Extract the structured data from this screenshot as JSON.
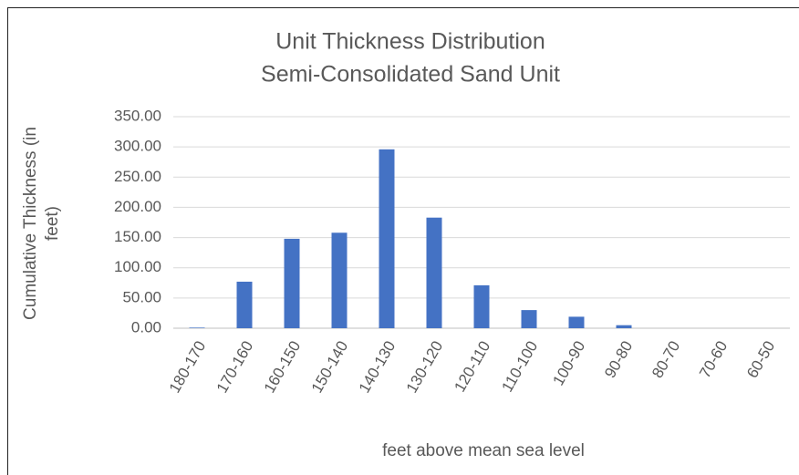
{
  "chart_data": {
    "type": "bar",
    "title": "Unit Thickness Distribution",
    "subtitle": "Semi-Consolidated Sand Unit",
    "x_label": "feet above mean sea level",
    "y_label": "Cumulative Thickness (in feet)",
    "categories": [
      "180-170",
      "170-160",
      "160-150",
      "150-140",
      "140-130",
      "130-120",
      "120-110",
      "110-100",
      "100-90",
      "90-80",
      "80-70",
      "70-60",
      "60-50"
    ],
    "values": [
      1,
      77,
      148,
      158,
      296,
      183,
      71,
      30,
      19,
      5,
      0,
      0,
      0
    ],
    "color": "#4472c4",
    "ylim": [
      0,
      350
    ],
    "yticks": [
      {
        "value": 0,
        "label": "0.00"
      },
      {
        "value": 50,
        "label": "50.00"
      },
      {
        "value": 100,
        "label": "100.00"
      },
      {
        "value": 150,
        "label": "150.00"
      },
      {
        "value": 200,
        "label": "200.00"
      },
      {
        "value": 250,
        "label": "250.00"
      },
      {
        "value": 300,
        "label": "300.00"
      },
      {
        "value": 350,
        "label": "350.00"
      }
    ],
    "grid": true
  }
}
